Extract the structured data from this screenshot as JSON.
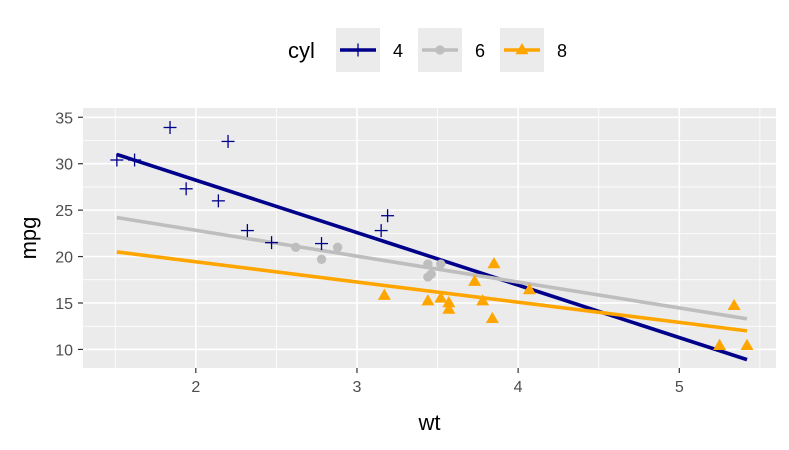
{
  "chart_data": {
    "type": "scatter",
    "xlabel": "wt",
    "ylabel": "mpg",
    "xlim": [
      1.3,
      5.6
    ],
    "ylim": [
      8,
      36
    ],
    "xticks": [
      2,
      3,
      4,
      5
    ],
    "yticks": [
      10,
      15,
      20,
      25,
      30,
      35
    ],
    "grid": true,
    "legend": {
      "title": "cyl",
      "position": "top"
    },
    "series": [
      {
        "name": "4",
        "color": "#00008B",
        "marker": "plus",
        "points": [
          [
            1.51,
            30.4
          ],
          [
            1.62,
            30.4
          ],
          [
            1.84,
            33.9
          ],
          [
            1.94,
            27.3
          ],
          [
            2.14,
            26.0
          ],
          [
            2.2,
            32.4
          ],
          [
            2.32,
            22.8
          ],
          [
            2.47,
            21.5
          ],
          [
            2.78,
            21.4
          ],
          [
            3.15,
            22.8
          ],
          [
            3.19,
            24.4
          ]
        ],
        "fit": [
          [
            1.51,
            31.0
          ],
          [
            5.42,
            8.9
          ]
        ]
      },
      {
        "name": "6",
        "color": "#BEBEBE",
        "marker": "circle",
        "points": [
          [
            2.62,
            21.0
          ],
          [
            2.78,
            19.7
          ],
          [
            2.88,
            21.0
          ],
          [
            3.44,
            19.2
          ],
          [
            3.44,
            17.8
          ],
          [
            3.46,
            18.1
          ],
          [
            3.52,
            19.2
          ]
        ],
        "fit": [
          [
            1.51,
            24.2
          ],
          [
            5.42,
            13.3
          ]
        ]
      },
      {
        "name": "8",
        "color": "#FFA500",
        "marker": "triangle",
        "points": [
          [
            3.17,
            15.8
          ],
          [
            3.44,
            15.2
          ],
          [
            3.52,
            15.5
          ],
          [
            3.57,
            14.3
          ],
          [
            3.57,
            15.0
          ],
          [
            3.73,
            17.3
          ],
          [
            3.78,
            15.2
          ],
          [
            3.84,
            13.3
          ],
          [
            3.85,
            19.2
          ],
          [
            4.07,
            16.4
          ],
          [
            5.25,
            10.4
          ],
          [
            5.34,
            14.7
          ],
          [
            5.42,
            10.4
          ]
        ],
        "fit": [
          [
            1.51,
            20.5
          ],
          [
            5.42,
            12.0
          ]
        ]
      }
    ]
  }
}
